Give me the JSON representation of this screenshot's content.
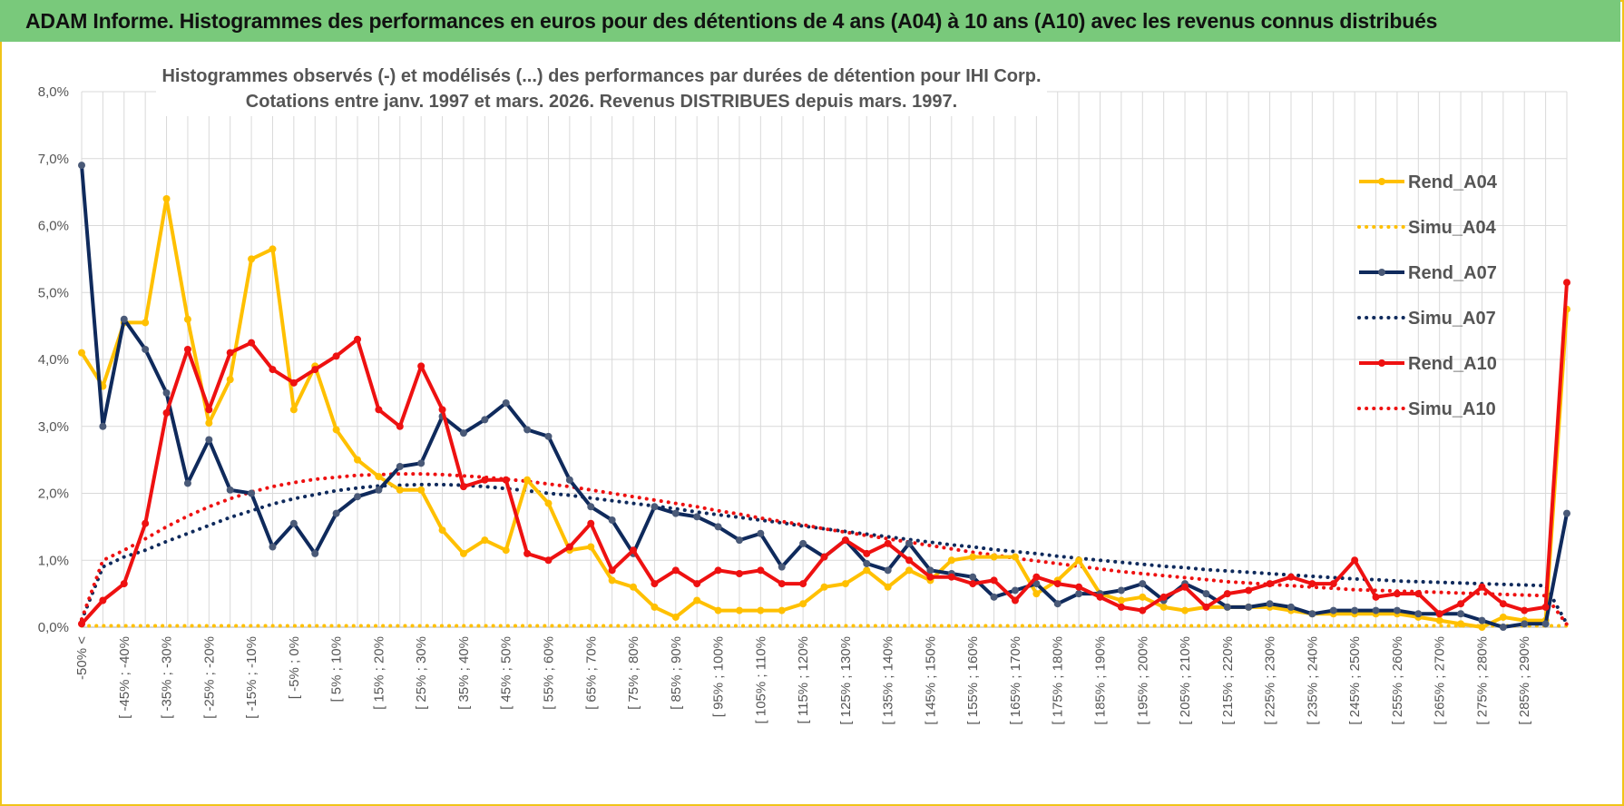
{
  "header": {
    "title": "ADAM Informe. Histogrammes des performances en euros pour des détentions de 4 ans (A04) à 10 ans (A10) avec les revenus connus distribués"
  },
  "chart_data": {
    "type": "line",
    "title_lines": [
      "Histogrammes observés (-) et modélisés (...) des performances par durées de détention pour IHI Corp.",
      "Cotations entre janv. 1997 et mars. 2026. Revenus DISTRIBUES depuis mars. 1997."
    ],
    "yticks": [
      "0,0%",
      "1,0%",
      "2,0%",
      "3,0%",
      "4,0%",
      "5,0%",
      "6,0%",
      "7,0%",
      "8,0%"
    ],
    "ylim": [
      0,
      8
    ],
    "xtick_labels": [
      "-50% <",
      "[ -45% ; -40%",
      "[ -35% ; -30%",
      "[ -25% ; -20%",
      "[ -15% ; -10%",
      "[ -5% ; 0%",
      "[ 5% ; 10%",
      "[ 15% ; 20%",
      "[ 25% ; 30%",
      "[ 35% ; 40%",
      "[ 45% ; 50%",
      "[ 55% ; 60%",
      "[ 65% ; 70%",
      "[ 75% ; 80%",
      "[ 85% ; 90%",
      "[ 95% ; 100%",
      "[ 105% ; 110%",
      "[ 115% ; 120%",
      "[ 125% ; 130%",
      "[ 135% ; 140%",
      "[ 145% ; 150%",
      "[ 155% ; 160%",
      "[ 165% ; 170%",
      "[ 175% ; 180%",
      "[ 185% ; 190%",
      "[ 195% ; 200%",
      "[ 205% ; 210%",
      "[ 215% ; 220%",
      "[ 225% ; 230%",
      "[ 235% ; 240%",
      "[ 245% ; 250%",
      "[ 255% ; 260%",
      "[ 265% ; 270%",
      "[ 275% ; 280%",
      "[ 285% ; 290%"
    ],
    "series": [
      {
        "name": "Rend_A04",
        "color": "#ffc000",
        "style": "solid",
        "values": [
          4.1,
          3.6,
          4.55,
          4.55,
          6.4,
          4.6,
          3.05,
          3.7,
          5.5,
          5.65,
          3.25,
          3.9,
          2.95,
          2.5,
          2.25,
          2.05,
          2.05,
          1.45,
          1.1,
          1.3,
          1.15,
          2.2,
          1.85,
          1.15,
          1.2,
          0.7,
          0.6,
          0.3,
          0.15,
          0.4,
          0.25,
          0.25,
          0.25,
          0.25,
          0.35,
          0.6,
          0.65,
          0.85,
          0.6,
          0.85,
          0.7,
          1.0,
          1.05,
          1.05,
          1.05,
          0.5,
          0.7,
          1.0,
          0.5,
          0.4,
          0.45,
          0.3,
          0.25,
          0.3,
          0.3,
          0.3,
          0.3,
          0.25,
          0.2,
          0.2,
          0.2,
          0.2,
          0.2,
          0.15,
          0.1,
          0.05,
          0.0,
          0.15,
          0.1,
          0.1,
          4.75
        ]
      },
      {
        "name": "Simu_A04",
        "color": "#ffc000",
        "style": "dotted",
        "values": [
          0.02,
          0.02,
          0.02,
          0.02,
          0.02,
          0.02,
          0.02,
          0.02,
          0.02,
          0.02,
          0.02,
          0.02,
          0.02,
          0.02,
          0.02,
          0.02,
          0.02,
          0.02,
          0.02,
          0.02,
          0.02,
          0.02,
          0.02,
          0.02,
          0.02,
          0.02,
          0.02,
          0.02,
          0.02,
          0.02,
          0.02,
          0.02,
          0.02,
          0.02,
          0.02,
          0.02,
          0.02,
          0.02,
          0.02,
          0.02,
          0.02,
          0.02,
          0.02,
          0.02,
          0.02,
          0.02,
          0.02,
          0.02,
          0.02,
          0.02,
          0.02,
          0.02,
          0.02,
          0.02,
          0.02,
          0.02,
          0.02,
          0.02,
          0.02,
          0.02,
          0.02,
          0.02,
          0.02,
          0.02,
          0.02,
          0.02,
          0.02,
          0.02,
          0.02,
          0.02,
          0.02
        ]
      },
      {
        "name": "Rend_A07",
        "color": "#0f2a5c",
        "style": "solid",
        "values": [
          6.9,
          3.0,
          4.6,
          4.15,
          3.5,
          2.15,
          2.8,
          2.05,
          2.0,
          1.2,
          1.55,
          1.1,
          1.7,
          1.95,
          2.05,
          2.4,
          2.45,
          3.15,
          2.9,
          3.1,
          3.35,
          2.95,
          2.85,
          2.2,
          1.8,
          1.6,
          1.1,
          1.8,
          1.7,
          1.65,
          1.5,
          1.3,
          1.4,
          0.9,
          1.25,
          1.05,
          1.3,
          0.95,
          0.85,
          1.25,
          0.85,
          0.8,
          0.75,
          0.45,
          0.55,
          0.65,
          0.35,
          0.5,
          0.5,
          0.55,
          0.65,
          0.4,
          0.65,
          0.5,
          0.3,
          0.3,
          0.35,
          0.3,
          0.2,
          0.25,
          0.25,
          0.25,
          0.25,
          0.2,
          0.2,
          0.2,
          0.1,
          0.0,
          0.05,
          0.05,
          1.7
        ]
      },
      {
        "name": "Simu_A07",
        "color": "#0f2a5c",
        "style": "dotted",
        "values": [
          0.1,
          0.9,
          1.05,
          1.15,
          1.28,
          1.4,
          1.52,
          1.64,
          1.74,
          1.84,
          1.92,
          1.98,
          2.04,
          2.08,
          2.11,
          2.12,
          2.13,
          2.13,
          2.12,
          2.1,
          2.07,
          2.04,
          2.0,
          1.97,
          1.93,
          1.89,
          1.85,
          1.81,
          1.77,
          1.72,
          1.68,
          1.64,
          1.6,
          1.56,
          1.51,
          1.47,
          1.43,
          1.39,
          1.35,
          1.31,
          1.27,
          1.23,
          1.2,
          1.16,
          1.13,
          1.1,
          1.06,
          1.03,
          1.0,
          0.97,
          0.94,
          0.91,
          0.89,
          0.86,
          0.84,
          0.82,
          0.8,
          0.78,
          0.76,
          0.74,
          0.72,
          0.71,
          0.69,
          0.68,
          0.67,
          0.66,
          0.65,
          0.64,
          0.63,
          0.62,
          0.05
        ]
      },
      {
        "name": "Rend_A10",
        "color": "#ee1111",
        "style": "solid",
        "values": [
          0.05,
          0.4,
          0.65,
          1.55,
          3.2,
          4.15,
          3.25,
          4.1,
          4.25,
          3.85,
          3.65,
          3.85,
          4.05,
          4.3,
          3.25,
          3.0,
          3.9,
          3.25,
          2.1,
          2.2,
          2.2,
          1.1,
          1.0,
          1.2,
          1.55,
          0.85,
          1.15,
          0.65,
          0.85,
          0.65,
          0.85,
          0.8,
          0.85,
          0.65,
          0.65,
          1.05,
          1.3,
          1.1,
          1.25,
          1.0,
          0.75,
          0.75,
          0.65,
          0.7,
          0.4,
          0.75,
          0.65,
          0.6,
          0.45,
          0.3,
          0.25,
          0.45,
          0.6,
          0.3,
          0.5,
          0.55,
          0.65,
          0.75,
          0.65,
          0.65,
          1.0,
          0.45,
          0.5,
          0.5,
          0.2,
          0.35,
          0.6,
          0.35,
          0.25,
          0.3,
          5.15
        ]
      },
      {
        "name": "Simu_A10",
        "color": "#ee1111",
        "style": "dotted",
        "values": [
          0.12,
          1.0,
          1.15,
          1.32,
          1.5,
          1.66,
          1.8,
          1.92,
          2.02,
          2.1,
          2.16,
          2.21,
          2.24,
          2.27,
          2.28,
          2.29,
          2.29,
          2.28,
          2.26,
          2.24,
          2.21,
          2.18,
          2.14,
          2.1,
          2.05,
          2.0,
          1.95,
          1.9,
          1.85,
          1.8,
          1.74,
          1.69,
          1.63,
          1.58,
          1.53,
          1.47,
          1.42,
          1.37,
          1.32,
          1.27,
          1.22,
          1.17,
          1.12,
          1.08,
          1.03,
          0.99,
          0.95,
          0.91,
          0.87,
          0.83,
          0.8,
          0.77,
          0.74,
          0.71,
          0.68,
          0.66,
          0.64,
          0.62,
          0.6,
          0.58,
          0.56,
          0.55,
          0.54,
          0.53,
          0.52,
          0.51,
          0.5,
          0.49,
          0.48,
          0.47,
          0.04
        ]
      }
    ]
  }
}
